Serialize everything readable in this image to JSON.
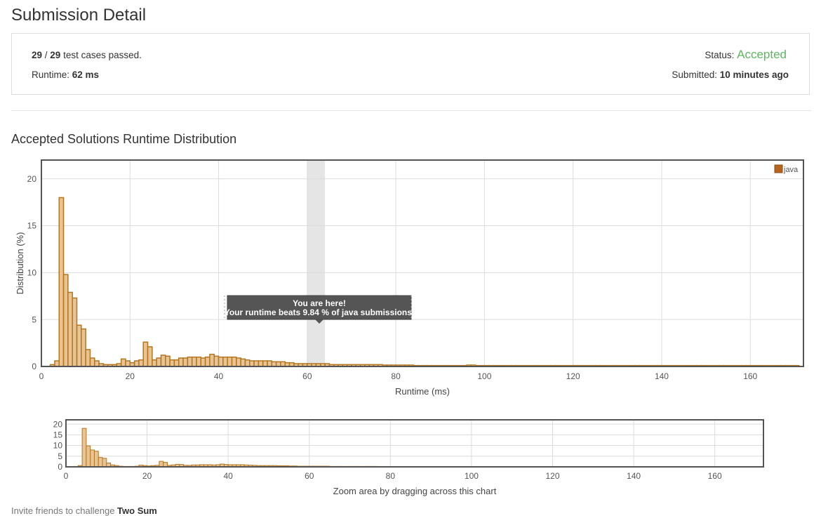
{
  "page": {
    "title": "Submission Detail"
  },
  "summary": {
    "passed": "29",
    "separator": " / ",
    "total": "29",
    "passed_suffix": " test cases passed.",
    "runtime_label": "Runtime: ",
    "runtime_value": "62 ms",
    "status_label": "Status: ",
    "status_value": "Accepted",
    "submitted_label": "Submitted: ",
    "submitted_value": "10 minutes ago"
  },
  "distribution": {
    "title": "Accepted Solutions Runtime Distribution",
    "tooltip_line1": "You are here!",
    "tooltip_line2": "Your runtime beats 9.84 % of java submissions.",
    "overview_caption": "Zoom area by dragging across this chart"
  },
  "invite": {
    "prefix": "Invite friends to challenge ",
    "problem": "Two Sum"
  },
  "colors": {
    "bar_fill": "#e8c393",
    "bar_stroke": "#b5761f",
    "legend_swatch": "#b5651d",
    "accepted": "#5cb85c",
    "highlight": "#e5e5e5"
  },
  "chart_data": {
    "type": "bar",
    "title": "Accepted Solutions Runtime Distribution",
    "xlabel": "Runtime (ms)",
    "ylabel": "Distribution (%)",
    "xlim": [
      0,
      172
    ],
    "ylim": [
      0,
      22
    ],
    "x_ticks": [
      0,
      20,
      40,
      60,
      80,
      100,
      120,
      140,
      160
    ],
    "y_ticks": [
      0,
      5,
      10,
      15,
      20
    ],
    "grid": true,
    "legend_position": "top-right",
    "highlight_range": [
      60,
      64
    ],
    "bar_width": 1,
    "series": [
      {
        "name": "java",
        "points": [
          [
            2,
            0.2
          ],
          [
            3,
            0.6
          ],
          [
            4,
            18.0
          ],
          [
            5,
            9.8
          ],
          [
            6,
            7.9
          ],
          [
            7,
            7.3
          ],
          [
            8,
            4.4
          ],
          [
            9,
            4.0
          ],
          [
            10,
            1.8
          ],
          [
            11,
            0.9
          ],
          [
            12,
            0.6
          ],
          [
            13,
            0.3
          ],
          [
            14,
            0.2
          ],
          [
            15,
            0.2
          ],
          [
            16,
            0.2
          ],
          [
            17,
            0.3
          ],
          [
            18,
            0.8
          ],
          [
            19,
            0.6
          ],
          [
            20,
            0.4
          ],
          [
            21,
            0.6
          ],
          [
            22,
            0.7
          ],
          [
            23,
            2.6
          ],
          [
            24,
            2.1
          ],
          [
            25,
            0.7
          ],
          [
            26,
            0.9
          ],
          [
            27,
            1.2
          ],
          [
            28,
            1.1
          ],
          [
            29,
            0.7
          ],
          [
            30,
            0.7
          ],
          [
            31,
            0.9
          ],
          [
            32,
            0.9
          ],
          [
            33,
            1.0
          ],
          [
            34,
            1.0
          ],
          [
            35,
            1.0
          ],
          [
            36,
            0.9
          ],
          [
            37,
            1.0
          ],
          [
            38,
            1.3
          ],
          [
            39,
            1.1
          ],
          [
            40,
            1.0
          ],
          [
            41,
            1.0
          ],
          [
            42,
            1.0
          ],
          [
            43,
            1.0
          ],
          [
            44,
            0.9
          ],
          [
            45,
            0.8
          ],
          [
            46,
            0.7
          ],
          [
            47,
            0.6
          ],
          [
            48,
            0.6
          ],
          [
            49,
            0.6
          ],
          [
            50,
            0.6
          ],
          [
            51,
            0.6
          ],
          [
            52,
            0.5
          ],
          [
            53,
            0.5
          ],
          [
            54,
            0.5
          ],
          [
            55,
            0.4
          ],
          [
            56,
            0.4
          ],
          [
            57,
            0.3
          ],
          [
            58,
            0.3
          ],
          [
            59,
            0.3
          ],
          [
            60,
            0.3
          ],
          [
            61,
            0.3
          ],
          [
            62,
            0.3
          ],
          [
            63,
            0.3
          ],
          [
            64,
            0.3
          ],
          [
            65,
            0.2
          ],
          [
            66,
            0.2
          ],
          [
            67,
            0.2
          ],
          [
            68,
            0.2
          ],
          [
            69,
            0.2
          ],
          [
            70,
            0.2
          ],
          [
            71,
            0.2
          ],
          [
            72,
            0.2
          ],
          [
            73,
            0.2
          ],
          [
            74,
            0.2
          ],
          [
            75,
            0.2
          ],
          [
            76,
            0.2
          ],
          [
            77,
            0.15
          ],
          [
            78,
            0.15
          ],
          [
            79,
            0.15
          ],
          [
            80,
            0.15
          ],
          [
            81,
            0.15
          ],
          [
            82,
            0.15
          ],
          [
            83,
            0.15
          ],
          [
            84,
            0.1
          ],
          [
            85,
            0.1
          ],
          [
            86,
            0.1
          ],
          [
            87,
            0.1
          ],
          [
            88,
            0.1
          ],
          [
            89,
            0.1
          ],
          [
            90,
            0.1
          ],
          [
            91,
            0.1
          ],
          [
            92,
            0.1
          ],
          [
            93,
            0.1
          ],
          [
            94,
            0.1
          ],
          [
            95,
            0.1
          ],
          [
            96,
            0.15
          ],
          [
            97,
            0.15
          ],
          [
            98,
            0.1
          ],
          [
            99,
            0.1
          ],
          [
            100,
            0.1
          ],
          [
            101,
            0.1
          ],
          [
            102,
            0.1
          ],
          [
            103,
            0.1
          ],
          [
            104,
            0.1
          ],
          [
            105,
            0.1
          ],
          [
            106,
            0.1
          ],
          [
            107,
            0.1
          ],
          [
            108,
            0.1
          ],
          [
            109,
            0.1
          ],
          [
            110,
            0.1
          ],
          [
            111,
            0.1
          ],
          [
            112,
            0.1
          ],
          [
            113,
            0.1
          ],
          [
            114,
            0.1
          ],
          [
            115,
            0.1
          ],
          [
            116,
            0.1
          ],
          [
            117,
            0.1
          ],
          [
            118,
            0.1
          ],
          [
            119,
            0.1
          ],
          [
            120,
            0.1
          ],
          [
            121,
            0.1
          ],
          [
            122,
            0.1
          ],
          [
            123,
            0.1
          ],
          [
            124,
            0.1
          ],
          [
            125,
            0.1
          ],
          [
            126,
            0.1
          ],
          [
            127,
            0.1
          ],
          [
            128,
            0.1
          ],
          [
            129,
            0.1
          ],
          [
            130,
            0.1
          ],
          [
            131,
            0.1
          ],
          [
            132,
            0.1
          ],
          [
            133,
            0.1
          ],
          [
            134,
            0.1
          ],
          [
            135,
            0.1
          ],
          [
            136,
            0.1
          ],
          [
            137,
            0.1
          ],
          [
            138,
            0.1
          ],
          [
            139,
            0.1
          ],
          [
            140,
            0.1
          ],
          [
            141,
            0.1
          ],
          [
            142,
            0.1
          ],
          [
            143,
            0.1
          ],
          [
            144,
            0.1
          ],
          [
            145,
            0.1
          ],
          [
            146,
            0.1
          ],
          [
            147,
            0.1
          ],
          [
            148,
            0.1
          ],
          [
            149,
            0.1
          ],
          [
            150,
            0.1
          ],
          [
            151,
            0.1
          ],
          [
            152,
            0.1
          ],
          [
            153,
            0.1
          ],
          [
            154,
            0.1
          ],
          [
            155,
            0.1
          ],
          [
            156,
            0.1
          ],
          [
            157,
            0.1
          ],
          [
            158,
            0.1
          ],
          [
            159,
            0.1
          ],
          [
            160,
            0.1
          ],
          [
            161,
            0.1
          ],
          [
            162,
            0.1
          ],
          [
            163,
            0.1
          ],
          [
            164,
            0.1
          ],
          [
            165,
            0.1
          ],
          [
            166,
            0.1
          ],
          [
            167,
            0.1
          ],
          [
            168,
            0.1
          ],
          [
            169,
            0.1
          ],
          [
            170,
            0.1
          ]
        ]
      }
    ]
  }
}
